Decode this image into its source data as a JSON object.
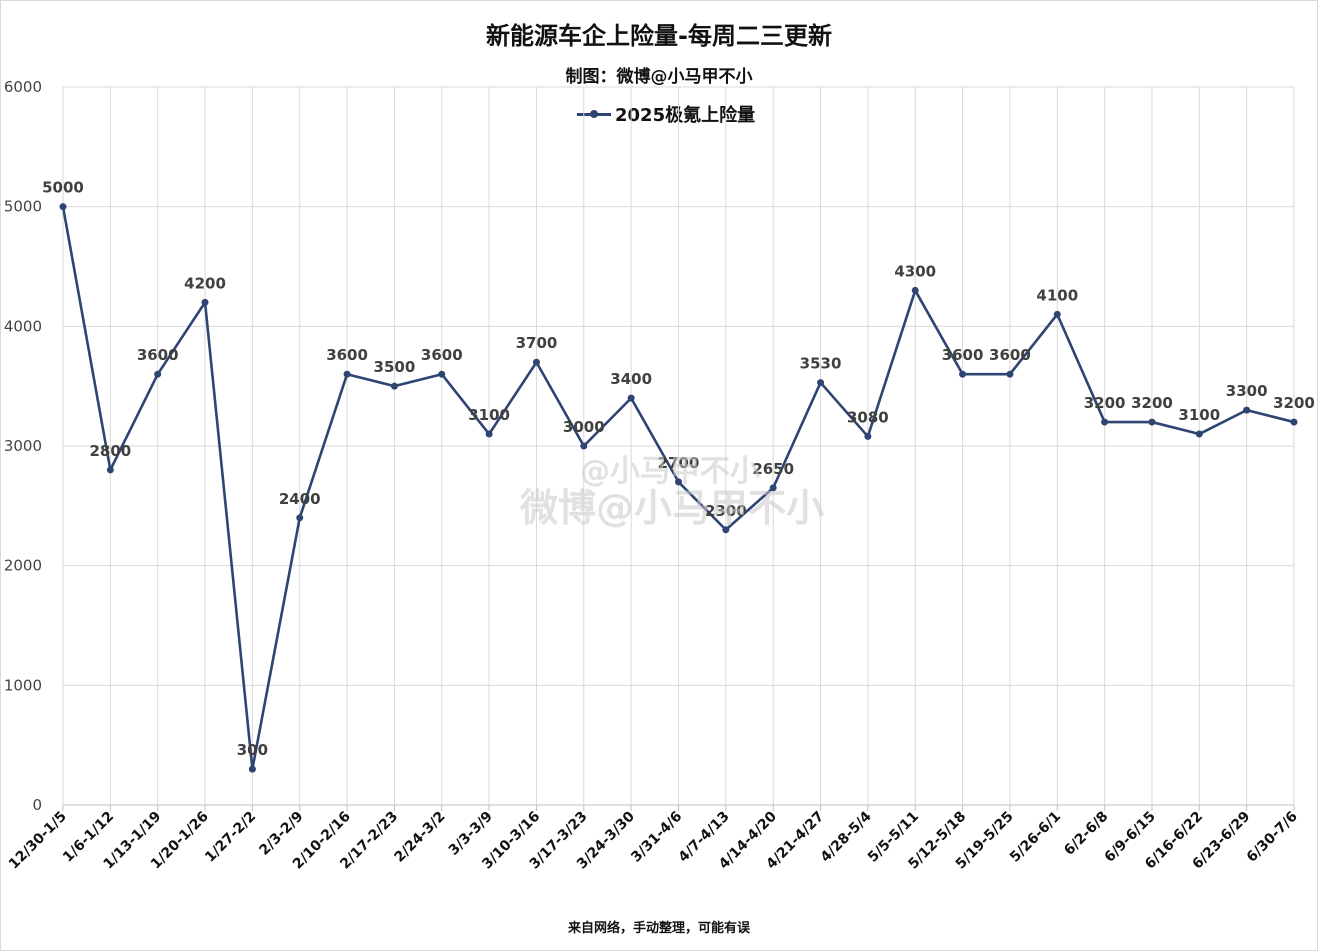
{
  "chart_data": {
    "type": "line",
    "title": "新能源车企上险量-每周二三更新",
    "subtitle": "制图：微博@小马甲不小",
    "xlabel": "",
    "ylabel": "",
    "ylim": [
      0,
      6000
    ],
    "yticks": [
      0,
      1000,
      2000,
      3000,
      4000,
      5000,
      6000
    ],
    "grid": true,
    "legend_position": "top-center",
    "categories": [
      "12/30-1/5",
      "1/6-1/12",
      "1/13-1/19",
      "1/20-1/26",
      "1/27-2/2",
      "2/3-2/9",
      "2/10-2/16",
      "2/17-2/23",
      "2/24-3/2",
      "3/3-3/9",
      "3/10-3/16",
      "3/17-3/23",
      "3/24-3/30",
      "3/31-4/6",
      "4/7-4/13",
      "4/14-4/20",
      "4/21-4/27",
      "4/28-5/4",
      "5/5-5/11",
      "5/12-5/18",
      "5/19-5/25",
      "5/26-6/1",
      "6/2-6/8",
      "6/9-6/15",
      "6/16-6/22",
      "6/23-6/29",
      "6/30-7/6"
    ],
    "series": [
      {
        "name": "2025极氪上险量",
        "color": "#2e4472",
        "values": [
          5000,
          2800,
          3600,
          4200,
          300,
          2400,
          3600,
          3500,
          3600,
          3100,
          3700,
          3000,
          3400,
          2700,
          2300,
          2650,
          3530,
          3080,
          4300,
          3600,
          3600,
          4100,
          3200,
          3200,
          3100,
          3300,
          3200
        ]
      }
    ]
  },
  "footer": "来自网络，手动整理，可能有误",
  "watermark": {
    "line1": "@小马甲不小",
    "line2": "微博@小马甲不小"
  }
}
